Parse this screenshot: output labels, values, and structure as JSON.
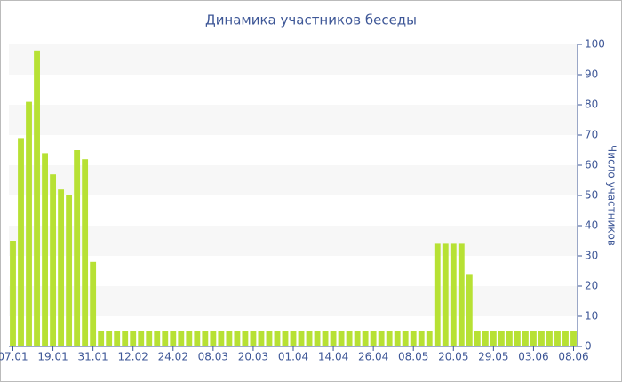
{
  "chart_data": {
    "type": "bar",
    "title": "Динамика участников беседы",
    "y_label": "Число участников",
    "categories": [
      "07.01",
      null,
      null,
      null,
      null,
      "19.01",
      null,
      null,
      null,
      null,
      "31.01",
      null,
      null,
      null,
      null,
      "12.02",
      null,
      null,
      null,
      null,
      "24.02",
      null,
      null,
      null,
      null,
      "08.03",
      null,
      null,
      null,
      null,
      "20.03",
      null,
      null,
      null,
      null,
      "01.04",
      null,
      null,
      null,
      null,
      "14.04",
      null,
      null,
      null,
      null,
      "26.04",
      null,
      null,
      null,
      null,
      "08.05",
      null,
      null,
      null,
      null,
      "20.05",
      null,
      null,
      null,
      null,
      "29.05",
      null,
      null,
      null,
      null,
      "03.06",
      null,
      null,
      null,
      null,
      "08.06"
    ],
    "values": [
      35,
      69,
      81,
      98,
      64,
      57,
      52,
      50,
      65,
      62,
      28,
      5,
      5,
      5,
      5,
      5,
      5,
      5,
      5,
      5,
      5,
      5,
      5,
      5,
      5,
      5,
      5,
      5,
      5,
      5,
      5,
      5,
      5,
      5,
      5,
      5,
      5,
      5,
      5,
      5,
      5,
      5,
      5,
      5,
      5,
      5,
      5,
      5,
      5,
      5,
      5,
      5,
      5,
      34,
      34,
      34,
      34,
      24,
      5,
      5,
      5,
      5,
      5,
      5,
      5,
      5,
      5,
      5,
      5,
      5,
      5
    ],
    "color": "#b7e134",
    "ylim": [
      0,
      100
    ],
    "yticks": [
      0,
      10,
      20,
      30,
      40,
      50,
      60,
      70,
      80,
      90,
      100
    ],
    "y_axis_side": "right",
    "grid": "bands"
  }
}
